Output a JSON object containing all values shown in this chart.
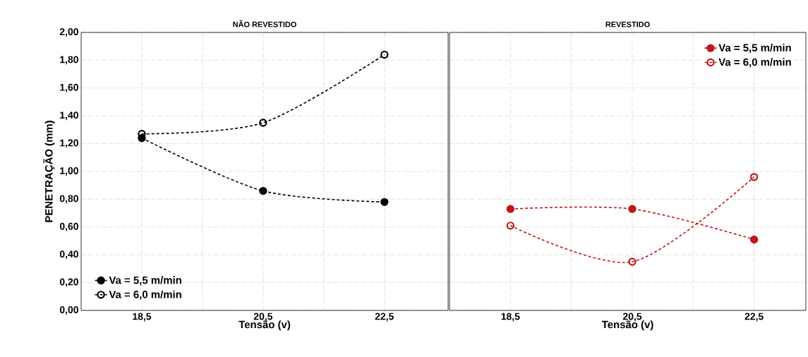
{
  "chart_data": [
    {
      "type": "line",
      "title": "NÃO REVESTIDO",
      "xlabel": "Tensão (v)",
      "ylabel": "PENETRAÇÃO (mm)",
      "x": [
        18.5,
        20.5,
        22.5
      ],
      "series": [
        {
          "name": "Va = 5,5 m/min",
          "color": "#000000",
          "marker": "circle",
          "values": [
            1.24,
            0.86,
            0.78
          ]
        },
        {
          "name": "Va = 6,0 m/min",
          "color": "#000000",
          "marker": "open circle",
          "values": [
            1.27,
            1.35,
            1.84
          ]
        }
      ],
      "xlim": [
        17.5,
        23.55
      ],
      "xticks": [
        {
          "value": 18.5,
          "label": "18,5"
        },
        {
          "value": 19.5,
          "label": null
        },
        {
          "value": 20.5,
          "label": "20,5"
        },
        {
          "value": 21.5,
          "label": null
        },
        {
          "value": 22.5,
          "label": "22,5"
        }
      ],
      "ylim": [
        0,
        2
      ],
      "yticks": [
        {
          "value": 0,
          "label": "0,00"
        },
        {
          "value": 0.2,
          "label": "0,20"
        },
        {
          "value": 0.4,
          "label": "0,40"
        },
        {
          "value": 0.6,
          "label": "0,60"
        },
        {
          "value": 0.8,
          "label": "0,80"
        },
        {
          "value": 1.0,
          "label": "1,00"
        },
        {
          "value": 1.2,
          "label": "1,20"
        },
        {
          "value": 1.4,
          "label": "1,40"
        },
        {
          "value": 1.6,
          "label": "1,60"
        },
        {
          "value": 1.8,
          "label": "1,80"
        },
        {
          "value": 2.0,
          "label": "2,00"
        }
      ],
      "grid": true,
      "legend": "bottom left",
      "line_style": "dashed"
    },
    {
      "type": "line",
      "title": "REVESTIDO",
      "xlabel": "Tensão (v)",
      "x": [
        18.5,
        20.5,
        22.5
      ],
      "series": [
        {
          "name": "Va = 5,5 m/min",
          "color": "#c0161b",
          "marker": "circle",
          "values": [
            0.73,
            0.73,
            0.51
          ]
        },
        {
          "name": "Va = 6,0 m/min",
          "color": "#c0161b",
          "marker": "open circle",
          "values": [
            0.61,
            0.35,
            0.96
          ]
        }
      ],
      "xlim": [
        17.5,
        23.35
      ],
      "xticks": [
        {
          "value": 18.5,
          "label": "18,5"
        },
        {
          "value": 19.5,
          "label": null
        },
        {
          "value": 20.5,
          "label": "20,5"
        },
        {
          "value": 21.5,
          "label": null
        },
        {
          "value": 22.5,
          "label": "22,5"
        }
      ],
      "ylim": [
        0,
        2
      ],
      "yticks": [
        {
          "value": 0,
          "label": null
        },
        {
          "value": 0.2,
          "label": null
        },
        {
          "value": 0.4,
          "label": null
        },
        {
          "value": 0.6,
          "label": null
        },
        {
          "value": 0.8,
          "label": null
        },
        {
          "value": 1.0,
          "label": null
        },
        {
          "value": 1.2,
          "label": null
        },
        {
          "value": 1.4,
          "label": null
        },
        {
          "value": 1.6,
          "label": null
        },
        {
          "value": 1.8,
          "label": null
        },
        {
          "value": 2.0,
          "label": null
        }
      ],
      "tick_labels": "x",
      "grid": true,
      "legend": "top right",
      "line_style": "dashed"
    }
  ]
}
